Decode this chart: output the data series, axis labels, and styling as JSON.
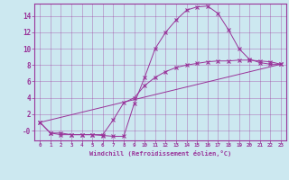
{
  "xlabel": "Windchill (Refroidissement éolien,°C)",
  "bg_color": "#cce8f0",
  "line_color": "#993399",
  "xlim": [
    -0.5,
    23.5
  ],
  "ylim": [
    -1.2,
    15.5
  ],
  "yticks": [
    0,
    2,
    4,
    6,
    8,
    10,
    12,
    14
  ],
  "ytick_labels": [
    "-0",
    "2",
    "4",
    "6",
    "8",
    "10",
    "12",
    "14"
  ],
  "xticks": [
    0,
    1,
    2,
    3,
    4,
    5,
    6,
    7,
    8,
    9,
    10,
    11,
    12,
    13,
    14,
    15,
    16,
    17,
    18,
    19,
    20,
    21,
    22,
    23
  ],
  "line1_x": [
    0,
    1,
    2,
    3,
    4,
    5,
    6,
    7,
    8,
    9,
    10,
    11,
    12,
    13,
    14,
    15,
    16,
    17,
    18,
    19,
    20,
    21,
    22,
    23
  ],
  "line1_y": [
    1.0,
    -0.3,
    -0.3,
    -0.5,
    -0.5,
    -0.5,
    -0.6,
    -0.7,
    -0.7,
    3.3,
    6.5,
    10.0,
    12.0,
    13.5,
    14.7,
    15.1,
    15.2,
    14.3,
    12.3,
    10.0,
    8.7,
    8.3,
    8.1,
    8.1
  ],
  "line2_x": [
    0,
    1,
    2,
    3,
    4,
    5,
    6,
    7,
    8,
    9,
    10,
    11,
    12,
    13,
    14,
    15,
    16,
    17,
    18,
    19,
    20,
    21,
    22,
    23
  ],
  "line2_y": [
    1.0,
    -0.3,
    -0.5,
    -0.5,
    -0.5,
    -0.5,
    -0.5,
    1.3,
    3.4,
    4.0,
    5.5,
    6.5,
    7.2,
    7.7,
    8.0,
    8.2,
    8.4,
    8.5,
    8.5,
    8.6,
    8.6,
    8.5,
    8.4,
    8.1
  ],
  "line3_x": [
    0,
    23
  ],
  "line3_y": [
    1.0,
    8.1
  ]
}
